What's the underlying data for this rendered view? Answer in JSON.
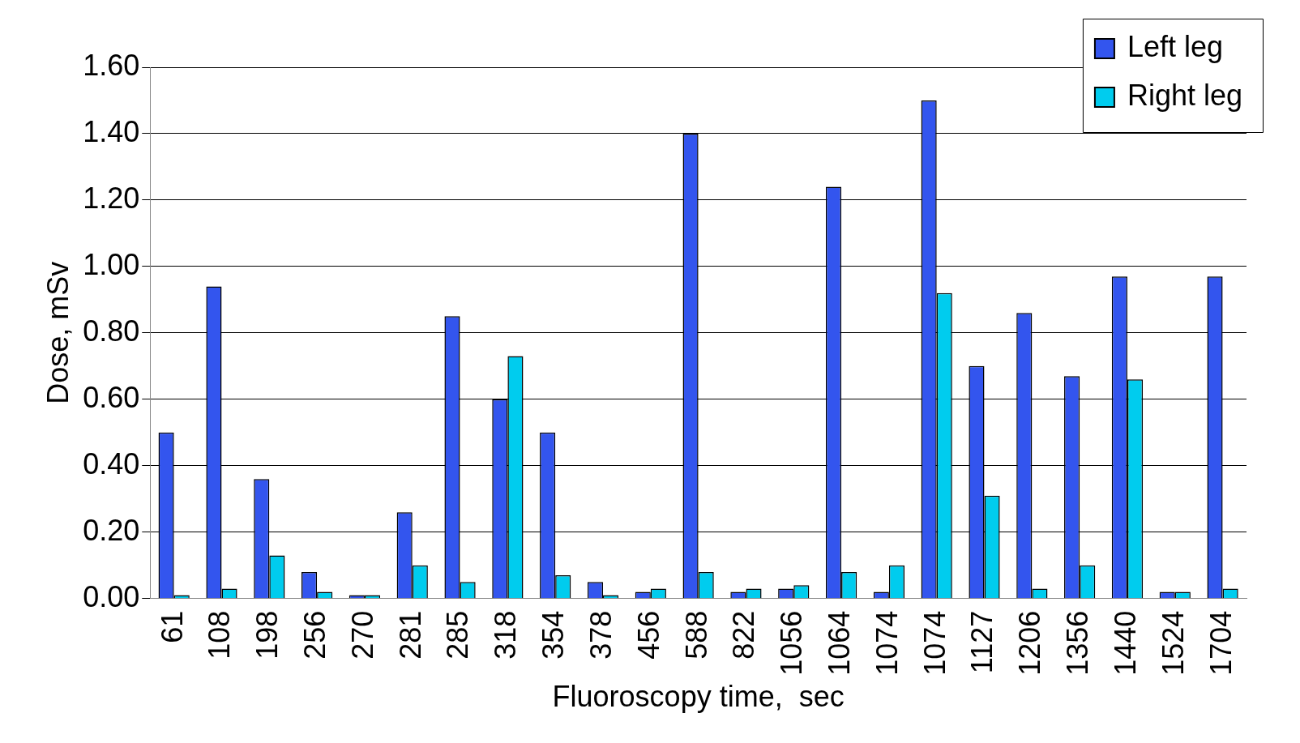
{
  "chart_data": {
    "type": "bar",
    "xlabel": "Fluoroscopy time,  sec",
    "ylabel": "Dose, mSv",
    "categories": [
      "61",
      "108",
      "198",
      "256",
      "270",
      "281",
      "285",
      "318",
      "354",
      "378",
      "456",
      "588",
      "822",
      "1056",
      "1064",
      "1074",
      "1074",
      "1127",
      "1206",
      "1356",
      "1440",
      "1524",
      "1704"
    ],
    "series": [
      {
        "name": "Left leg",
        "color": "#3355ee",
        "values": [
          0.5,
          0.94,
          0.36,
          0.08,
          0.01,
          0.26,
          0.85,
          0.6,
          0.5,
          0.05,
          0.02,
          1.4,
          0.02,
          0.03,
          1.24,
          0.02,
          1.5,
          0.7,
          0.86,
          0.67,
          0.97,
          0.02,
          0.97
        ]
      },
      {
        "name": "Right leg",
        "color": "#00ccee",
        "values": [
          0.01,
          0.03,
          0.13,
          0.02,
          0.01,
          0.1,
          0.05,
          0.73,
          0.07,
          0.01,
          0.03,
          0.08,
          0.03,
          0.04,
          0.08,
          0.1,
          0.92,
          0.31,
          0.03,
          0.1,
          0.66,
          0.02,
          0.03
        ]
      }
    ],
    "ylim": [
      0,
      1.6
    ],
    "yticks": [
      {
        "value": 0,
        "label": "0.00"
      },
      {
        "value": 0.2,
        "label": "0.20"
      },
      {
        "value": 0.4,
        "label": "0.40"
      },
      {
        "value": 0.6,
        "label": "0.60"
      },
      {
        "value": 0.8,
        "label": "0.80"
      },
      {
        "value": 1.0,
        "label": "1.00"
      },
      {
        "value": 1.2,
        "label": "1.20"
      },
      {
        "value": 1.4,
        "label": "1.40"
      },
      {
        "value": 1.6,
        "label": "1.60"
      }
    ],
    "grid": "y",
    "legend": "top right"
  }
}
